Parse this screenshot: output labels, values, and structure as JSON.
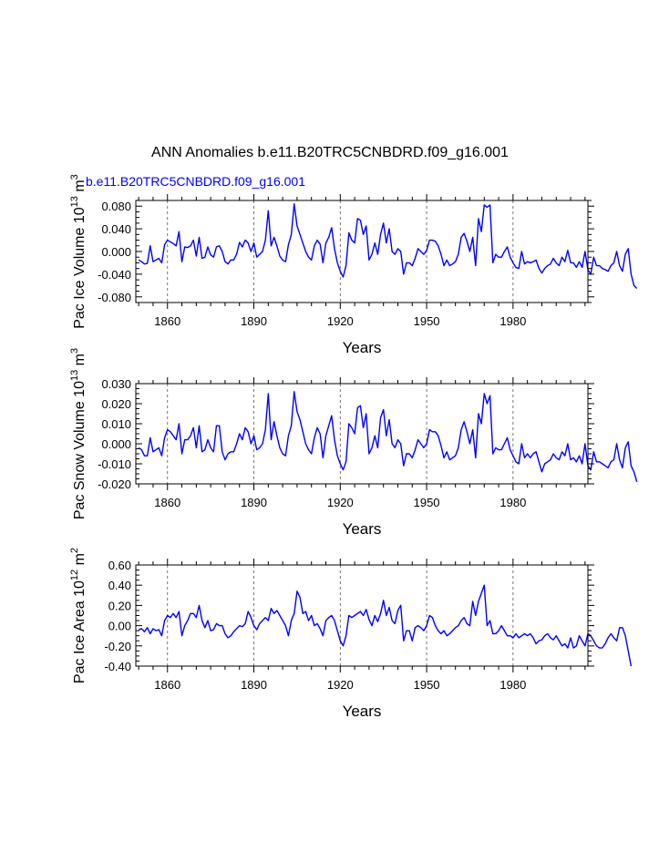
{
  "title": "ANN Anomalies b.e11.B20TRC5CNBDRD.f09_g16.001",
  "subtitle": "b.e11.B20TRC5CNBDRD.f09_g16.001",
  "colors": {
    "series": "#0000ff",
    "axes": "#000000",
    "grid": "#555555",
    "subtitle": "#0000ff"
  },
  "chart_data": [
    {
      "type": "line",
      "ylabel": "Pac Ice Volume 10",
      "ylabel_exp": "13",
      "ylabel_unit": " m",
      "ylabel_unit_exp": "3",
      "xlabel": "Years",
      "xlim": [
        1849,
        2006
      ],
      "ylim": [
        -0.09,
        0.09
      ],
      "yticks": [
        -0.08,
        -0.04,
        0.0,
        0.04,
        0.08
      ],
      "ytick_labels": [
        "-0.080",
        "-0.040",
        "0.000",
        "0.040",
        "0.080"
      ],
      "xticks": [
        1860,
        1890,
        1920,
        1950,
        1980
      ],
      "xtick_labels": [
        "1860",
        "1890",
        "1920",
        "1950",
        "1980"
      ],
      "grid_x": [
        1860,
        1890,
        1920,
        1950,
        1980
      ],
      "x_start": 1850,
      "values": [
        -0.015,
        -0.018,
        -0.022,
        -0.021,
        0.01,
        -0.018,
        -0.015,
        -0.012,
        -0.02,
        0.012,
        0.02,
        0.017,
        0.014,
        0.01,
        0.035,
        -0.018,
        0.008,
        0.007,
        0.01,
        0.02,
        -0.008,
        0.025,
        -0.012,
        -0.01,
        0.008,
        -0.006,
        -0.01,
        0.008,
        0.01,
        0.0,
        -0.018,
        -0.022,
        -0.015,
        -0.015,
        -0.005,
        0.016,
        0.008,
        0.02,
        0.015,
        0.0,
        0.015,
        -0.01,
        -0.005,
        0.0,
        0.02,
        0.072,
        0.01,
        0.025,
        0.01,
        -0.008,
        -0.015,
        -0.018,
        0.012,
        0.03,
        0.084,
        0.045,
        0.03,
        0.015,
        0.0,
        -0.01,
        -0.015,
        0.01,
        0.02,
        0.013,
        -0.02,
        0.015,
        0.025,
        0.042,
        0.005,
        -0.02,
        -0.035,
        -0.045,
        -0.025,
        0.033,
        0.02,
        0.015,
        0.058,
        0.055,
        0.03,
        0.045,
        -0.015,
        -0.005,
        0.015,
        -0.005,
        0.03,
        0.05,
        0.015,
        0.04,
        0.0,
        -0.005,
        0.005,
        0.0,
        -0.04,
        -0.02,
        -0.02,
        -0.025,
        -0.012,
        0.005,
        0.0,
        -0.005,
        0.002,
        0.02,
        0.02,
        0.018,
        0.01,
        -0.005,
        -0.025,
        -0.015,
        -0.025,
        -0.022,
        -0.018,
        -0.005,
        0.025,
        0.032,
        0.018,
        0.0,
        0.025,
        -0.025,
        0.058,
        0.035,
        0.082,
        0.078,
        0.082,
        -0.02,
        -0.005,
        -0.01,
        -0.01,
        0.0,
        0.008,
        -0.01,
        -0.02,
        -0.028,
        -0.03,
        0.0,
        -0.022,
        -0.018,
        -0.02,
        -0.018,
        -0.015,
        -0.03,
        -0.038,
        -0.03,
        -0.025,
        -0.022,
        -0.012,
        -0.02,
        -0.025,
        -0.01,
        -0.018,
        0.002,
        -0.02,
        -0.02,
        -0.028,
        -0.018,
        -0.028,
        0.0,
        -0.032,
        -0.04,
        -0.01,
        -0.025,
        -0.025,
        -0.03,
        -0.032,
        -0.035,
        -0.025,
        -0.02,
        0.0,
        -0.025,
        -0.035,
        -0.005,
        0.005,
        -0.04,
        -0.06,
        -0.065
      ]
    },
    {
      "type": "line",
      "ylabel": "Pac Snow Volume 10",
      "ylabel_exp": "13",
      "ylabel_unit": " m",
      "ylabel_unit_exp": "3",
      "xlabel": "Years",
      "xlim": [
        1849,
        2006
      ],
      "ylim": [
        -0.02,
        0.03
      ],
      "yticks": [
        -0.02,
        -0.01,
        0.0,
        0.01,
        0.02,
        0.03
      ],
      "ytick_labels": [
        "-0.020",
        "-0.010",
        "0.000",
        "0.010",
        "0.020",
        "0.030"
      ],
      "xticks": [
        1860,
        1890,
        1920,
        1950,
        1980
      ],
      "xtick_labels": [
        "1860",
        "1890",
        "1920",
        "1950",
        "1980"
      ],
      "grid_x": [
        1860,
        1890,
        1920,
        1950,
        1980
      ],
      "x_start": 1850,
      "values": [
        -0.002,
        -0.003,
        -0.006,
        -0.006,
        0.003,
        -0.004,
        -0.003,
        -0.002,
        -0.006,
        0.003,
        0.007,
        0.006,
        0.004,
        0.002,
        0.01,
        -0.005,
        0.002,
        0.002,
        0.004,
        0.008,
        -0.002,
        0.009,
        -0.004,
        -0.003,
        0.002,
        -0.002,
        -0.004,
        0.009,
        0.009,
        -0.004,
        -0.008,
        -0.005,
        -0.004,
        -0.004,
        0.0,
        0.005,
        0.002,
        0.008,
        0.006,
        0.0,
        0.004,
        -0.003,
        -0.002,
        0.0,
        0.007,
        0.025,
        0.002,
        0.011,
        0.004,
        -0.002,
        -0.005,
        -0.006,
        0.004,
        0.009,
        0.026,
        0.016,
        0.012,
        0.006,
        0.0,
        -0.003,
        -0.005,
        0.003,
        0.008,
        0.005,
        -0.007,
        0.004,
        0.009,
        0.014,
        0.002,
        -0.006,
        -0.01,
        -0.013,
        -0.009,
        0.01,
        0.008,
        0.005,
        0.018,
        0.019,
        0.008,
        0.015,
        -0.005,
        -0.002,
        0.004,
        -0.002,
        0.013,
        0.017,
        0.004,
        0.012,
        0.0,
        -0.002,
        0.002,
        0.0,
        -0.011,
        -0.005,
        -0.005,
        -0.007,
        -0.003,
        0.002,
        0.0,
        -0.002,
        0.0,
        0.007,
        0.006,
        0.006,
        0.004,
        -0.001,
        -0.007,
        -0.004,
        -0.008,
        -0.007,
        -0.006,
        -0.002,
        0.007,
        0.011,
        0.006,
        0.0,
        0.007,
        -0.007,
        0.015,
        0.01,
        0.025,
        0.02,
        0.024,
        -0.005,
        -0.002,
        -0.003,
        -0.003,
        0.0,
        0.003,
        -0.003,
        -0.006,
        -0.009,
        -0.01,
        0.0,
        -0.007,
        -0.005,
        -0.007,
        -0.005,
        -0.004,
        -0.009,
        -0.014,
        -0.01,
        -0.009,
        -0.008,
        -0.005,
        -0.007,
        -0.008,
        -0.004,
        -0.006,
        0.0,
        -0.008,
        -0.007,
        -0.009,
        -0.006,
        -0.01,
        0.0,
        -0.011,
        -0.013,
        -0.004,
        -0.009,
        -0.009,
        -0.01,
        -0.011,
        -0.012,
        -0.009,
        -0.008,
        0.0,
        -0.008,
        -0.012,
        -0.002,
        0.001,
        -0.011,
        -0.014,
        -0.019
      ]
    },
    {
      "type": "line",
      "ylabel": "Pac Ice Area 10",
      "ylabel_exp": "12",
      "ylabel_unit": " m",
      "ylabel_unit_exp": "2",
      "xlabel": "Years",
      "xlim": [
        1849,
        2006
      ],
      "ylim": [
        -0.4,
        0.6
      ],
      "yticks": [
        -0.4,
        -0.2,
        0.0,
        0.2,
        0.4,
        0.6
      ],
      "ytick_labels": [
        "-0.40",
        "-0.20",
        "0.00",
        "0.20",
        "0.40",
        "0.60"
      ],
      "xticks": [
        1860,
        1890,
        1920,
        1950,
        1980
      ],
      "xtick_labels": [
        "1860",
        "1890",
        "1920",
        "1950",
        "1980"
      ],
      "grid_x": [
        1860,
        1890,
        1920,
        1950,
        1980
      ],
      "x_start": 1850,
      "values": [
        -0.04,
        -0.03,
        -0.06,
        -0.02,
        -0.08,
        -0.03,
        -0.05,
        -0.04,
        -0.1,
        0.05,
        0.1,
        0.08,
        0.12,
        0.08,
        0.14,
        -0.1,
        0.0,
        0.05,
        0.12,
        0.12,
        0.08,
        0.2,
        0.05,
        -0.02,
        0.05,
        -0.05,
        -0.04,
        0.02,
        0.0,
        0.0,
        -0.08,
        -0.12,
        -0.1,
        -0.06,
        -0.03,
        0.0,
        -0.01,
        0.02,
        0.14,
        0.08,
        0.0,
        -0.04,
        0.02,
        0.05,
        0.08,
        0.05,
        0.17,
        0.12,
        0.15,
        0.1,
        0.05,
        0.0,
        -0.1,
        0.05,
        0.12,
        0.34,
        0.28,
        0.12,
        0.14,
        0.05,
        0.1,
        0.0,
        0.02,
        -0.03,
        -0.1,
        0.05,
        0.08,
        0.1,
        0.05,
        -0.05,
        -0.15,
        -0.2,
        -0.1,
        0.1,
        0.08,
        0.1,
        0.12,
        0.14,
        0.1,
        0.16,
        0.06,
        0.0,
        0.1,
        0.04,
        0.12,
        0.25,
        0.1,
        0.18,
        0.05,
        0.02,
        0.15,
        0.2,
        -0.15,
        -0.05,
        -0.05,
        -0.15,
        -0.02,
        0.0,
        -0.02,
        -0.05,
        0.0,
        0.1,
        0.08,
        0.0,
        -0.05,
        -0.08,
        -0.05,
        -0.1,
        -0.08,
        -0.05,
        -0.02,
        0.0,
        0.05,
        0.08,
        0.02,
        0.0,
        0.24,
        0.1,
        0.24,
        0.32,
        0.4,
        0.0,
        0.05,
        -0.08,
        -0.08,
        -0.05,
        0.0,
        -0.05,
        -0.1,
        -0.1,
        -0.12,
        -0.08,
        -0.12,
        -0.1,
        -0.08,
        -0.1,
        -0.08,
        -0.12,
        -0.18,
        -0.15,
        -0.14,
        -0.1,
        -0.08,
        -0.12,
        -0.14,
        -0.1,
        -0.15,
        -0.2,
        -0.18,
        -0.22,
        -0.12,
        -0.22,
        -0.2,
        -0.1,
        -0.15,
        -0.2,
        -0.08,
        -0.1,
        -0.15,
        -0.2,
        -0.22,
        -0.22,
        -0.18,
        -0.12,
        -0.08,
        -0.12,
        -0.15,
        -0.02,
        -0.02,
        -0.1,
        -0.25,
        -0.4
      ]
    }
  ]
}
